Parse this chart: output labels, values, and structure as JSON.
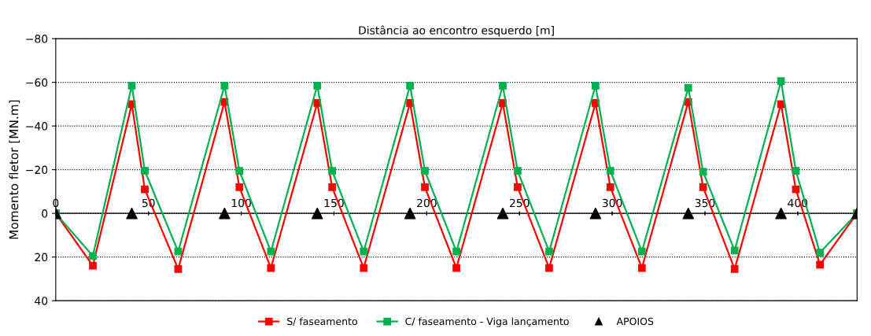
{
  "chart_data": {
    "type": "line",
    "xlabel": "Distância ao encontro esquerdo [m]",
    "ylabel": "Momento fletor [MN.m]",
    "xlim": [
      0,
      432
    ],
    "xticks": [
      0,
      50,
      100,
      150,
      200,
      250,
      300,
      350,
      400
    ],
    "ylim": [
      40,
      -80
    ],
    "yticks": [
      -80,
      -60,
      -40,
      -20,
      0,
      20,
      40
    ],
    "grid": "y",
    "legend": "bottom",
    "marker": "square",
    "line_style": "solid",
    "x": [
      0,
      20,
      41,
      48,
      66,
      91,
      99,
      116,
      141,
      149,
      166,
      191,
      199,
      216,
      241,
      249,
      266,
      291,
      299,
      316,
      341,
      349,
      366,
      391,
      399,
      412,
      432
    ],
    "series": [
      {
        "name": "S/ faseamento",
        "color": "#ff0000",
        "values": [
          0,
          24,
          -50,
          -11,
          25.5,
          -51,
          -12,
          25,
          -50.5,
          -12,
          25,
          -50.5,
          -12,
          25,
          -50.5,
          -12,
          25,
          -50.5,
          -12,
          25,
          -51,
          -12,
          25.5,
          -50,
          -11,
          23.5,
          0
        ]
      },
      {
        "name": "C/ faseamento - Viga lançamento",
        "color": "#00b050",
        "values": [
          0,
          19.5,
          -58.5,
          -19.5,
          17.5,
          -58.5,
          -19.5,
          17.5,
          -58.5,
          -19.5,
          17.5,
          -58.5,
          -19.5,
          17.5,
          -58.5,
          -19.5,
          17.5,
          -58.5,
          -19.5,
          17.5,
          -57.5,
          -19,
          17,
          -60.5,
          -19.5,
          18,
          0
        ]
      },
      {
        "name": "APOIOS",
        "type": "scatter",
        "marker": "triangle",
        "color": "#000000",
        "x": [
          0,
          41,
          91,
          141,
          191,
          241,
          291,
          341,
          391,
          432
        ],
        "values": [
          0,
          0,
          0,
          0,
          0,
          0,
          0,
          0,
          0,
          0
        ]
      }
    ]
  }
}
